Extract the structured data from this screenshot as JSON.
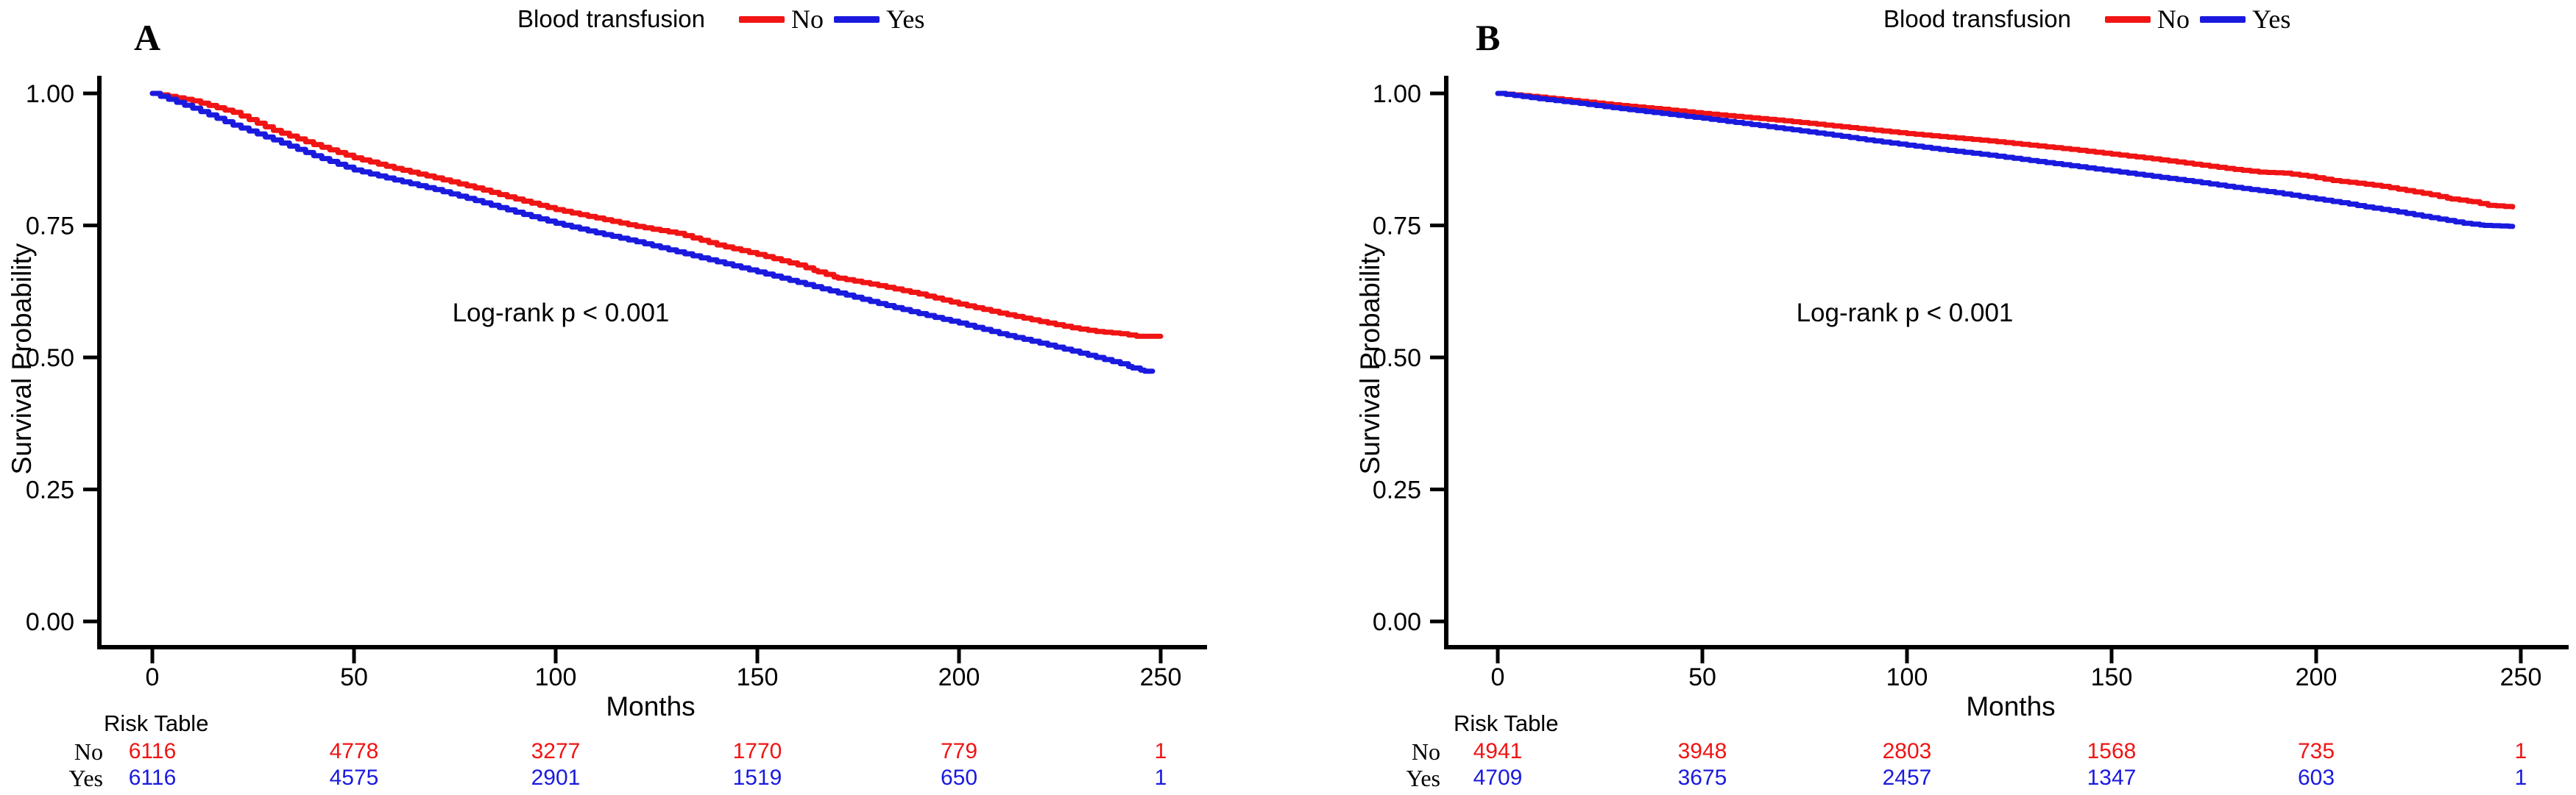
{
  "figure": {
    "background": "#ffffff",
    "colors": {
      "no": "#F01414",
      "yes": "#1A1ADF",
      "axis": "#000000"
    }
  },
  "panels": [
    {
      "label": "A",
      "legend": {
        "title": "Blood transfusion",
        "no_label": "No",
        "yes_label": "Yes"
      },
      "ylabel": "Survival Probability",
      "xlabel": "Months",
      "annotation": "Log-rank p < 0.001",
      "risk_table": {
        "title": "Risk Table",
        "rows": [
          {
            "label": "No",
            "color": "#F01414",
            "values": [
              "6116",
              "4778",
              "3277",
              "1770",
              "779",
              "1"
            ]
          },
          {
            "label": "Yes",
            "color": "#1A1ADF",
            "values": [
              "6116",
              "4575",
              "2901",
              "1519",
              "650",
              "1"
            ]
          }
        ]
      }
    },
    {
      "label": "B",
      "legend": {
        "title": "Blood transfusion",
        "no_label": "No",
        "yes_label": "Yes"
      },
      "ylabel": "Survival Probability",
      "xlabel": "Months",
      "annotation": "Log-rank p < 0.001",
      "risk_table": {
        "title": "Risk Table",
        "rows": [
          {
            "label": "No",
            "color": "#F01414",
            "values": [
              "4941",
              "3948",
              "2803",
              "1568",
              "735",
              "1"
            ]
          },
          {
            "label": "Yes",
            "color": "#1A1ADF",
            "values": [
              "4709",
              "3675",
              "2457",
              "1347",
              "603",
              "1"
            ]
          }
        ]
      }
    }
  ],
  "chart_data": [
    {
      "type": "line",
      "subtype": "kaplan-meier",
      "title": "A",
      "xlabel": "Months",
      "ylabel": "Survival Probability",
      "xlim": [
        0,
        250
      ],
      "ylim": [
        0.0,
        1.0
      ],
      "x_ticks": [
        0,
        50,
        100,
        150,
        200,
        250
      ],
      "y_tick_values": [
        1.0,
        0.75,
        0.5,
        0.25,
        0.0
      ],
      "y_tick_labels": [
        "1.00",
        "0.75",
        "0.50",
        "0.25",
        "0.00"
      ],
      "annotation": "Log-rank p < 0.001",
      "legend_position": "top",
      "grid": false,
      "series": [
        {
          "name": "No",
          "color": "#F01414",
          "points": [
            [
              0,
              1.0
            ],
            [
              10,
              0.986
            ],
            [
              20,
              0.964
            ],
            [
              30,
              0.93
            ],
            [
              40,
              0.903
            ],
            [
              50,
              0.878
            ],
            [
              60,
              0.858
            ],
            [
              70,
              0.84
            ],
            [
              80,
              0.821
            ],
            [
              90,
              0.8
            ],
            [
              100,
              0.78
            ],
            [
              110,
              0.764
            ],
            [
              120,
              0.748
            ],
            [
              130,
              0.735
            ],
            [
              140,
              0.713
            ],
            [
              150,
              0.695
            ],
            [
              160,
              0.675
            ],
            [
              165,
              0.662
            ],
            [
              170,
              0.65
            ],
            [
              180,
              0.636
            ],
            [
              190,
              0.62
            ],
            [
              200,
              0.601
            ],
            [
              210,
              0.584
            ],
            [
              220,
              0.568
            ],
            [
              228,
              0.556
            ],
            [
              234,
              0.549
            ],
            [
              240,
              0.545
            ],
            [
              244,
              0.54
            ],
            [
              250,
              0.54
            ]
          ]
        },
        {
          "name": "Yes",
          "color": "#1A1ADF",
          "points": [
            [
              0,
              1.0
            ],
            [
              10,
              0.972
            ],
            [
              20,
              0.94
            ],
            [
              30,
              0.912
            ],
            [
              40,
              0.882
            ],
            [
              50,
              0.855
            ],
            [
              60,
              0.836
            ],
            [
              70,
              0.818
            ],
            [
              80,
              0.797
            ],
            [
              90,
              0.775
            ],
            [
              100,
              0.754
            ],
            [
              110,
              0.736
            ],
            [
              120,
              0.719
            ],
            [
              130,
              0.7
            ],
            [
              140,
              0.681
            ],
            [
              150,
              0.662
            ],
            [
              160,
              0.642
            ],
            [
              170,
              0.622
            ],
            [
              180,
              0.602
            ],
            [
              190,
              0.583
            ],
            [
              200,
              0.565
            ],
            [
              210,
              0.545
            ],
            [
              220,
              0.527
            ],
            [
              228,
              0.512
            ],
            [
              232,
              0.504
            ],
            [
              236,
              0.496
            ],
            [
              240,
              0.488
            ],
            [
              243,
              0.48
            ],
            [
              246,
              0.474
            ],
            [
              248,
              0.474
            ]
          ]
        }
      ],
      "risk_table": {
        "No": [
          6116,
          4778,
          3277,
          1770,
          779,
          1
        ],
        "Yes": [
          6116,
          4575,
          2901,
          1519,
          650,
          1
        ]
      }
    },
    {
      "type": "line",
      "subtype": "kaplan-meier",
      "title": "B",
      "xlabel": "Months",
      "ylabel": "Survival Probability",
      "xlim": [
        0,
        250
      ],
      "ylim": [
        0.0,
        1.0
      ],
      "x_ticks": [
        0,
        50,
        100,
        150,
        200,
        250
      ],
      "y_tick_values": [
        1.0,
        0.75,
        0.5,
        0.25,
        0.0
      ],
      "y_tick_labels": [
        "1.00",
        "0.75",
        "0.50",
        "0.25",
        "0.00"
      ],
      "annotation": "Log-rank p < 0.001",
      "legend_position": "top",
      "grid": false,
      "series": [
        {
          "name": "No",
          "color": "#F01414",
          "points": [
            [
              0,
              1.0
            ],
            [
              10,
              0.993
            ],
            [
              20,
              0.985
            ],
            [
              30,
              0.977
            ],
            [
              40,
              0.97
            ],
            [
              50,
              0.962
            ],
            [
              60,
              0.955
            ],
            [
              70,
              0.948
            ],
            [
              80,
              0.94
            ],
            [
              90,
              0.932
            ],
            [
              100,
              0.924
            ],
            [
              110,
              0.917
            ],
            [
              120,
              0.91
            ],
            [
              130,
              0.902
            ],
            [
              140,
              0.894
            ],
            [
              150,
              0.885
            ],
            [
              160,
              0.876
            ],
            [
              170,
              0.866
            ],
            [
              180,
              0.856
            ],
            [
              186,
              0.851
            ],
            [
              192,
              0.849
            ],
            [
              198,
              0.843
            ],
            [
              204,
              0.835
            ],
            [
              210,
              0.83
            ],
            [
              216,
              0.824
            ],
            [
              222,
              0.816
            ],
            [
              228,
              0.808
            ],
            [
              233,
              0.8
            ],
            [
              238,
              0.795
            ],
            [
              242,
              0.788
            ],
            [
              248,
              0.785
            ]
          ]
        },
        {
          "name": "Yes",
          "color": "#1A1ADF",
          "points": [
            [
              0,
              1.0
            ],
            [
              10,
              0.99
            ],
            [
              20,
              0.981
            ],
            [
              30,
              0.971
            ],
            [
              40,
              0.962
            ],
            [
              50,
              0.953
            ],
            [
              60,
              0.943
            ],
            [
              70,
              0.933
            ],
            [
              80,
              0.923
            ],
            [
              90,
              0.912
            ],
            [
              100,
              0.902
            ],
            [
              110,
              0.892
            ],
            [
              120,
              0.883
            ],
            [
              130,
              0.873
            ],
            [
              140,
              0.863
            ],
            [
              150,
              0.853
            ],
            [
              160,
              0.843
            ],
            [
              170,
              0.833
            ],
            [
              180,
              0.822
            ],
            [
              190,
              0.812
            ],
            [
              200,
              0.8
            ],
            [
              206,
              0.793
            ],
            [
              212,
              0.785
            ],
            [
              218,
              0.778
            ],
            [
              224,
              0.77
            ],
            [
              230,
              0.762
            ],
            [
              236,
              0.754
            ],
            [
              241,
              0.75
            ],
            [
              248,
              0.748
            ]
          ]
        }
      ],
      "risk_table": {
        "No": [
          4941,
          3948,
          2803,
          1568,
          735,
          1
        ],
        "Yes": [
          4709,
          3675,
          2457,
          1347,
          603,
          1
        ]
      }
    }
  ]
}
